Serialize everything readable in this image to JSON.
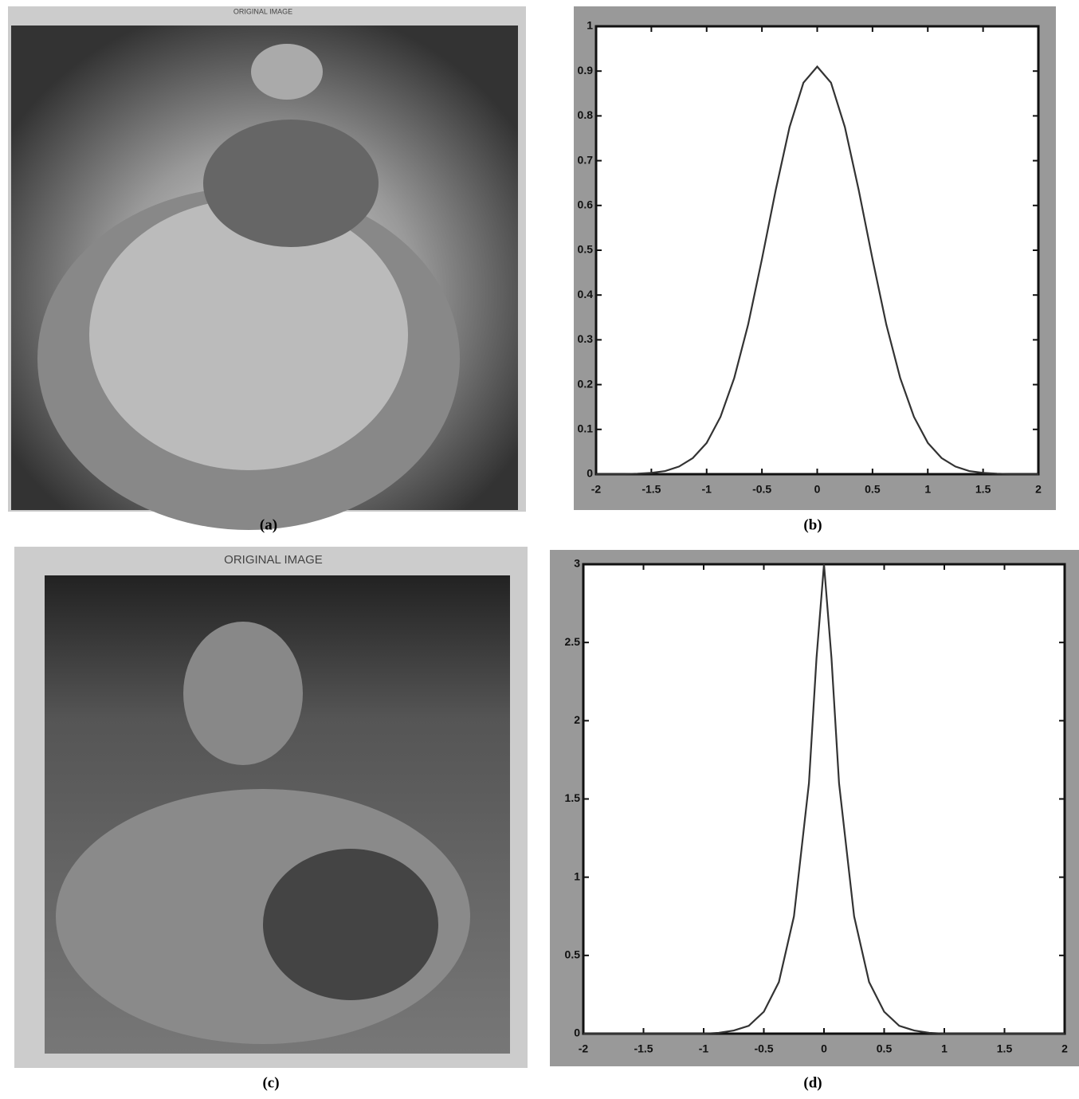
{
  "images": [
    {
      "title": "ORIGINAL IMAGE",
      "caption": "(a)"
    },
    {
      "title": "ORIGINAL IMAGE",
      "caption": "(c)"
    }
  ],
  "chart_data": [
    {
      "type": "line",
      "caption": "(b)",
      "xlim": [
        -2,
        2
      ],
      "ylim": [
        0,
        1
      ],
      "xticks": [
        -2,
        -1.5,
        -1,
        -0.5,
        0,
        0.5,
        1,
        1.5,
        2
      ],
      "yticks": [
        0,
        0.1,
        0.2,
        0.3,
        0.4,
        0.5,
        0.6,
        0.7,
        0.8,
        0.9,
        1
      ],
      "x": [
        -2,
        -1.875,
        -1.75,
        -1.625,
        -1.5,
        -1.375,
        -1.25,
        -1.125,
        -1,
        -0.875,
        -0.75,
        -0.625,
        -0.5,
        -0.375,
        -0.25,
        -0.125,
        0,
        0.125,
        0.25,
        0.375,
        0.5,
        0.625,
        0.75,
        0.875,
        1,
        1.125,
        1.25,
        1.375,
        1.5,
        1.625,
        1.75,
        1.875,
        2
      ],
      "series": [
        {
          "color": "#333333",
          "values": [
            0,
            0,
            0,
            0.001,
            0.003,
            0.007,
            0.017,
            0.036,
            0.07,
            0.128,
            0.215,
            0.334,
            0.48,
            0.635,
            0.775,
            0.874,
            0.91,
            0.874,
            0.775,
            0.635,
            0.48,
            0.334,
            0.215,
            0.128,
            0.07,
            0.036,
            0.017,
            0.007,
            0.003,
            0.001,
            0,
            0,
            0
          ]
        }
      ]
    },
    {
      "type": "line",
      "caption": "(d)",
      "xlim": [
        -2,
        2
      ],
      "ylim": [
        0,
        3
      ],
      "xticks": [
        -2,
        -1.5,
        -1,
        -0.5,
        0,
        0.5,
        1,
        1.5,
        2
      ],
      "yticks": [
        0,
        0.5,
        1,
        1.5,
        2,
        2.5,
        3
      ],
      "x": [
        -2,
        -1.5,
        -1,
        -0.875,
        -0.75,
        -0.625,
        -0.5,
        -0.375,
        -0.25,
        -0.125,
        -0.0625,
        0,
        0.0625,
        0.125,
        0.25,
        0.375,
        0.5,
        0.625,
        0.75,
        0.875,
        1,
        1.5,
        2
      ],
      "series": [
        {
          "color": "#333333",
          "values": [
            0,
            0,
            0,
            0.005,
            0.02,
            0.05,
            0.14,
            0.33,
            0.75,
            1.6,
            2.4,
            3,
            2.4,
            1.6,
            0.75,
            0.33,
            0.14,
            0.05,
            0.02,
            0.005,
            0,
            0,
            0
          ]
        }
      ]
    }
  ]
}
